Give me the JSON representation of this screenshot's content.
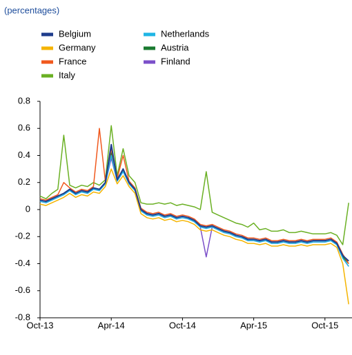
{
  "chart_data": {
    "type": "line",
    "subtitle": "(percentages)",
    "categories": [
      "Oct-13",
      null,
      null,
      null,
      null,
      null,
      null,
      null,
      null,
      null,
      null,
      null,
      "Apr-14",
      null,
      null,
      null,
      null,
      null,
      null,
      null,
      null,
      null,
      null,
      null,
      "Oct-14",
      null,
      null,
      null,
      null,
      null,
      null,
      null,
      null,
      null,
      null,
      null,
      "Apr-15",
      null,
      null,
      null,
      null,
      null,
      null,
      null,
      null,
      null,
      null,
      null,
      "Oct-15",
      null,
      null,
      null,
      null
    ],
    "ylim": [
      -0.8,
      0.8
    ],
    "yticks": [
      -0.8,
      -0.6,
      -0.4,
      -0.2,
      0,
      0.2,
      0.4,
      0.6,
      0.8
    ],
    "legend": "top-left",
    "series": [
      {
        "name": "Belgium",
        "color": "#1f3d8c",
        "values": [
          0.07,
          0.06,
          0.08,
          0.1,
          0.12,
          0.15,
          0.12,
          0.14,
          0.13,
          0.16,
          0.15,
          0.2,
          0.48,
          0.22,
          0.3,
          0.2,
          0.15,
          0.0,
          -0.03,
          -0.04,
          -0.03,
          -0.05,
          -0.04,
          -0.06,
          -0.05,
          -0.06,
          -0.08,
          -0.12,
          -0.13,
          -0.12,
          -0.14,
          -0.16,
          -0.17,
          -0.19,
          -0.2,
          -0.22,
          -0.22,
          -0.23,
          -0.22,
          -0.24,
          -0.24,
          -0.23,
          -0.24,
          -0.24,
          -0.23,
          -0.24,
          -0.23,
          -0.23,
          -0.23,
          -0.22,
          -0.25,
          -0.34,
          -0.38
        ]
      },
      {
        "name": "Germany",
        "color": "#f5b400",
        "values": [
          0.04,
          0.03,
          0.05,
          0.07,
          0.09,
          0.12,
          0.09,
          0.11,
          0.1,
          0.13,
          0.12,
          0.17,
          0.3,
          0.19,
          0.25,
          0.17,
          0.12,
          -0.03,
          -0.06,
          -0.07,
          -0.06,
          -0.08,
          -0.07,
          -0.09,
          -0.08,
          -0.09,
          -0.11,
          -0.15,
          -0.16,
          -0.15,
          -0.17,
          -0.19,
          -0.2,
          -0.22,
          -0.23,
          -0.25,
          -0.25,
          -0.26,
          -0.25,
          -0.27,
          -0.27,
          -0.26,
          -0.27,
          -0.27,
          -0.26,
          -0.27,
          -0.26,
          -0.26,
          -0.26,
          -0.25,
          -0.28,
          -0.4,
          -0.7
        ]
      },
      {
        "name": "France",
        "color": "#f0581d",
        "values": [
          0.08,
          0.07,
          0.09,
          0.11,
          0.2,
          0.16,
          0.13,
          0.15,
          0.14,
          0.17,
          0.6,
          0.21,
          0.45,
          0.23,
          0.4,
          0.21,
          0.16,
          0.01,
          -0.02,
          -0.03,
          -0.02,
          -0.04,
          -0.03,
          -0.05,
          -0.04,
          -0.05,
          -0.07,
          -0.11,
          -0.12,
          -0.11,
          -0.13,
          -0.15,
          -0.16,
          -0.18,
          -0.19,
          -0.21,
          -0.21,
          -0.22,
          -0.21,
          -0.23,
          -0.23,
          -0.22,
          -0.23,
          -0.23,
          -0.22,
          -0.23,
          -0.22,
          -0.22,
          -0.22,
          -0.21,
          -0.24,
          -0.33,
          -0.4
        ]
      },
      {
        "name": "Italy",
        "color": "#6ab023",
        "values": [
          0.1,
          0.08,
          0.12,
          0.15,
          0.55,
          0.18,
          0.16,
          0.18,
          0.17,
          0.2,
          0.18,
          0.22,
          0.62,
          0.25,
          0.45,
          0.25,
          0.2,
          0.05,
          0.04,
          0.04,
          0.05,
          0.04,
          0.05,
          0.03,
          0.04,
          0.03,
          0.02,
          0.0,
          0.28,
          -0.02,
          -0.04,
          -0.06,
          -0.08,
          -0.1,
          -0.11,
          -0.13,
          -0.1,
          -0.15,
          -0.14,
          -0.16,
          -0.16,
          -0.15,
          -0.17,
          -0.17,
          -0.16,
          -0.17,
          -0.18,
          -0.18,
          -0.18,
          -0.17,
          -0.19,
          -0.26,
          0.05
        ]
      },
      {
        "name": "Netherlands",
        "color": "#1fb5e5",
        "values": [
          0.06,
          0.05,
          0.07,
          0.09,
          0.11,
          0.14,
          0.11,
          0.13,
          0.12,
          0.15,
          0.14,
          0.19,
          0.4,
          0.21,
          0.28,
          0.19,
          0.14,
          -0.01,
          -0.04,
          -0.05,
          -0.04,
          -0.06,
          -0.05,
          -0.07,
          -0.06,
          -0.07,
          -0.09,
          -0.13,
          -0.14,
          -0.13,
          -0.15,
          -0.17,
          -0.18,
          -0.2,
          -0.21,
          -0.23,
          -0.23,
          -0.24,
          -0.23,
          -0.25,
          -0.25,
          -0.24,
          -0.25,
          -0.25,
          -0.24,
          -0.25,
          -0.24,
          -0.24,
          -0.24,
          -0.23,
          -0.26,
          -0.36,
          -0.42
        ]
      },
      {
        "name": "Austria",
        "color": "#1a7a30",
        "values": [
          0.07,
          0.06,
          0.08,
          0.1,
          0.12,
          0.15,
          0.12,
          0.14,
          0.13,
          0.16,
          0.15,
          0.19,
          0.42,
          0.22,
          0.29,
          0.2,
          0.15,
          0.0,
          -0.03,
          -0.04,
          -0.03,
          -0.05,
          -0.04,
          -0.06,
          -0.05,
          -0.06,
          -0.08,
          -0.12,
          -0.13,
          -0.12,
          -0.14,
          -0.16,
          -0.17,
          -0.19,
          -0.2,
          -0.22,
          -0.22,
          -0.23,
          -0.22,
          -0.24,
          -0.24,
          -0.23,
          -0.24,
          -0.24,
          -0.23,
          -0.24,
          -0.23,
          -0.23,
          -0.23,
          -0.22,
          -0.25,
          -0.35,
          -0.4
        ]
      },
      {
        "name": "Finland",
        "color": "#7b4fc9",
        "values": [
          0.06,
          0.05,
          0.07,
          0.09,
          0.11,
          0.14,
          0.11,
          0.13,
          0.12,
          0.15,
          0.14,
          0.19,
          0.38,
          0.21,
          0.28,
          0.19,
          0.14,
          -0.01,
          -0.04,
          -0.05,
          -0.04,
          -0.06,
          -0.05,
          -0.07,
          -0.06,
          -0.07,
          -0.09,
          -0.13,
          -0.35,
          -0.13,
          -0.15,
          -0.17,
          -0.18,
          -0.2,
          -0.21,
          -0.23,
          -0.23,
          -0.24,
          -0.23,
          -0.25,
          -0.25,
          -0.24,
          -0.25,
          -0.25,
          -0.24,
          -0.25,
          -0.24,
          -0.24,
          -0.24,
          -0.23,
          -0.26,
          -0.36,
          -0.42
        ]
      }
    ]
  }
}
